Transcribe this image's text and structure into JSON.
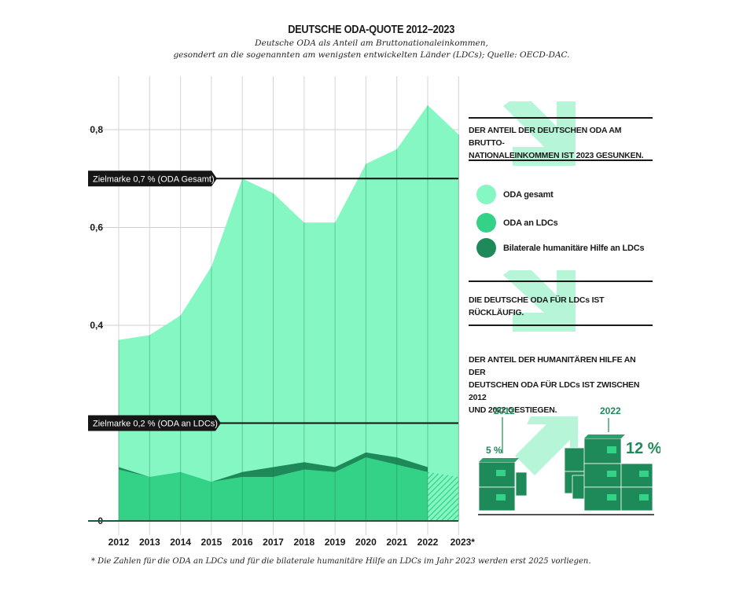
{
  "header": {
    "title": "DEUTSCHE ODA-QUOTE 2012–2023",
    "subtitle_line1": "Deutsche ODA als Anteil am Bruttonationaleinkommen,",
    "subtitle_line2": "gesondert an die sogenannten am wenigsten entwickelten Länder (LDCs); Quelle: OECD-DAC."
  },
  "chart_data": {
    "type": "area",
    "title": "DEUTSCHE ODA-QUOTE 2012–2023",
    "subtitle": "Deutsche ODA als Anteil am Bruttonationaleinkommen, gesondert an die sogenannten am wenigsten entwickelten Länder (LDCs); Quelle: OECD-DAC.",
    "xlabel": "",
    "ylabel": "",
    "x": [
      "2012",
      "2013",
      "2014",
      "2015",
      "2016",
      "2017",
      "2018",
      "2019",
      "2020",
      "2021",
      "2022",
      "2023*"
    ],
    "ylim": [
      0,
      0.9
    ],
    "yticks": [
      0,
      0.4,
      0.6,
      0.8
    ],
    "ytick_labels": [
      "0",
      "0,4",
      "0,6",
      "0,8"
    ],
    "grid": true,
    "series": [
      {
        "name": "ODA gesamt",
        "color": "#84f7c2",
        "values": [
          0.37,
          0.38,
          0.42,
          0.52,
          0.7,
          0.67,
          0.61,
          0.61,
          0.73,
          0.76,
          0.85,
          0.79
        ]
      },
      {
        "name": "Bilaterale humanitäre Hilfe an LDCs",
        "color": "#1e8a5a",
        "note": "stacked on top of ODA an LDCs; value shown is combined top",
        "values": [
          0.11,
          0.09,
          0.1,
          0.08,
          0.1,
          0.11,
          0.12,
          0.11,
          0.14,
          0.13,
          0.11,
          null
        ]
      },
      {
        "name": "ODA an LDCs",
        "color": "#34d287",
        "values": [
          0.105,
          0.09,
          0.1,
          0.08,
          0.09,
          0.09,
          0.105,
          0.1,
          0.13,
          0.115,
          0.1,
          null
        ]
      }
    ],
    "projection_2023_ldc": 0.09,
    "reference_lines": [
      {
        "label": "Zielmarke 0,7 % (ODA Gesamt)",
        "value": 0.7
      },
      {
        "label": "Zielmarke 0,2 % (ODA an LDCs)",
        "value": 0.2
      }
    ],
    "legend": {
      "placement": "right",
      "entries": [
        {
          "label": "ODA gesamt",
          "color": "#84f7c2"
        },
        {
          "label": "ODA an LDCs",
          "color": "#34d287"
        },
        {
          "label": "Bilaterale humanitäre Hilfe an LDCs",
          "color": "#1e8a5a"
        }
      ]
    },
    "annotations": [
      "DER ANTEIL DER DEUTSCHEN ODA AM BRUTTO-NATIONALEINKOMMEN IST 2023 GESUNKEN.",
      "DIE DEUTSCHE ODA FÜR LDCs IST RÜCKLÄUFIG.",
      "DER ANTEIL DER HUMANITÄREN HILFE AN DER DEUTSCHEN ODA FÜR LDCs IST ZWISCHEN 2012 UND 2022 GESTIEGEN."
    ],
    "footnote": "* Die Zahlen für die ODA an LDCs und für die bilaterale humanitäre Hilfe an LDCs im Jahr 2023 werden erst 2025 vorliegen."
  },
  "panel": {
    "statement1_line1": "DER ANTEIL DER DEUTSCHEN ODA AM BRUTTO-",
    "statement1_line2": "NATIONALEINKOMMEN IST 2023 GESUNKEN.",
    "statement2": "DIE DEUTSCHE ODA FÜR LDCs IST RÜCKLÄUFIG.",
    "statement3_line1": "DER ANTEIL DER HUMANITÄREN HILFE AN DER",
    "statement3_line2": "DEUTSCHEN ODA FÜR LDCs IST ZWISCHEN 2012",
    "statement3_line3": "UND 2022 GESTIEGEN.",
    "legend": [
      {
        "label": "ODA gesamt",
        "color": "#84f7c2"
      },
      {
        "label": "ODA an LDCs",
        "color": "#34d287"
      },
      {
        "label": "Bilaterale humanitäre Hilfe an LDCs",
        "color": "#1e8a5a"
      }
    ],
    "illustration": {
      "year_left": "2012",
      "percent_left": "5 %",
      "year_right": "2022",
      "percent_right": "12 %"
    }
  },
  "footnote": "* Die Zahlen für die ODA an LDCs und für die bilaterale humanitäre Hilfe an LDCs im Jahr 2023 werden erst 2025 vorliegen.",
  "colors": {
    "oda_total": "#84f7c2",
    "oda_ldc": "#34d287",
    "humanitarian": "#1e8a5a",
    "arrow_deco": "#b6f5d8",
    "text_dark": "#1a1a1a"
  }
}
